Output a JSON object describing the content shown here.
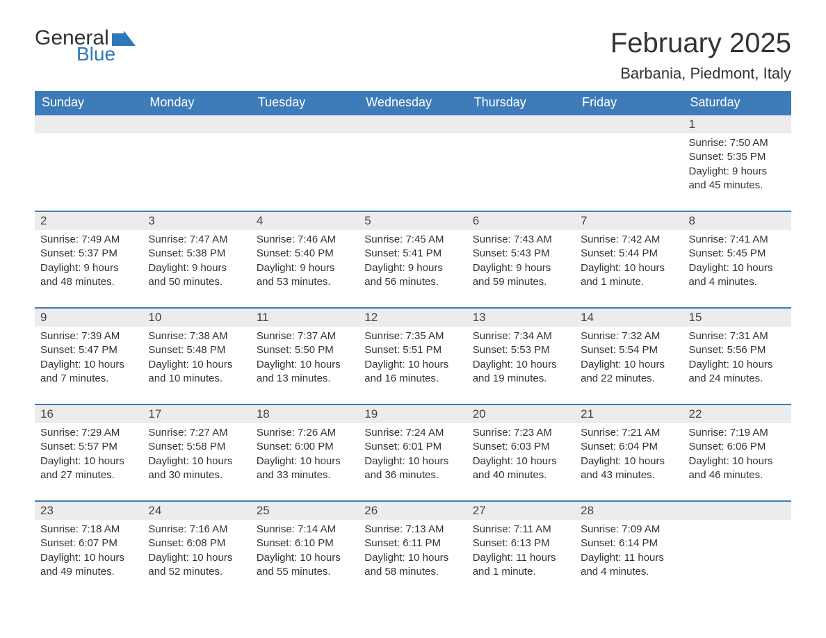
{
  "logo": {
    "general": "General",
    "blue": "Blue",
    "general_color": "#333333",
    "blue_color": "#2f77b7",
    "flag_color": "#2f77b7"
  },
  "title": "February 2025",
  "location": "Barbania, Piedmont, Italy",
  "colors": {
    "header_bg": "#3d7cb9",
    "header_text": "#ffffff",
    "daystrip_bg": "#ececec",
    "daystrip_border": "#3d7cb9",
    "body_bg": "#ffffff",
    "text": "#333333"
  },
  "weekdays": [
    "Sunday",
    "Monday",
    "Tuesday",
    "Wednesday",
    "Thursday",
    "Friday",
    "Saturday"
  ],
  "weeks": [
    [
      null,
      null,
      null,
      null,
      null,
      null,
      {
        "n": "1",
        "sunrise": "Sunrise: 7:50 AM",
        "sunset": "Sunset: 5:35 PM",
        "daylight": "Daylight: 9 hours and 45 minutes."
      }
    ],
    [
      {
        "n": "2",
        "sunrise": "Sunrise: 7:49 AM",
        "sunset": "Sunset: 5:37 PM",
        "daylight": "Daylight: 9 hours and 48 minutes."
      },
      {
        "n": "3",
        "sunrise": "Sunrise: 7:47 AM",
        "sunset": "Sunset: 5:38 PM",
        "daylight": "Daylight: 9 hours and 50 minutes."
      },
      {
        "n": "4",
        "sunrise": "Sunrise: 7:46 AM",
        "sunset": "Sunset: 5:40 PM",
        "daylight": "Daylight: 9 hours and 53 minutes."
      },
      {
        "n": "5",
        "sunrise": "Sunrise: 7:45 AM",
        "sunset": "Sunset: 5:41 PM",
        "daylight": "Daylight: 9 hours and 56 minutes."
      },
      {
        "n": "6",
        "sunrise": "Sunrise: 7:43 AM",
        "sunset": "Sunset: 5:43 PM",
        "daylight": "Daylight: 9 hours and 59 minutes."
      },
      {
        "n": "7",
        "sunrise": "Sunrise: 7:42 AM",
        "sunset": "Sunset: 5:44 PM",
        "daylight": "Daylight: 10 hours and 1 minute."
      },
      {
        "n": "8",
        "sunrise": "Sunrise: 7:41 AM",
        "sunset": "Sunset: 5:45 PM",
        "daylight": "Daylight: 10 hours and 4 minutes."
      }
    ],
    [
      {
        "n": "9",
        "sunrise": "Sunrise: 7:39 AM",
        "sunset": "Sunset: 5:47 PM",
        "daylight": "Daylight: 10 hours and 7 minutes."
      },
      {
        "n": "10",
        "sunrise": "Sunrise: 7:38 AM",
        "sunset": "Sunset: 5:48 PM",
        "daylight": "Daylight: 10 hours and 10 minutes."
      },
      {
        "n": "11",
        "sunrise": "Sunrise: 7:37 AM",
        "sunset": "Sunset: 5:50 PM",
        "daylight": "Daylight: 10 hours and 13 minutes."
      },
      {
        "n": "12",
        "sunrise": "Sunrise: 7:35 AM",
        "sunset": "Sunset: 5:51 PM",
        "daylight": "Daylight: 10 hours and 16 minutes."
      },
      {
        "n": "13",
        "sunrise": "Sunrise: 7:34 AM",
        "sunset": "Sunset: 5:53 PM",
        "daylight": "Daylight: 10 hours and 19 minutes."
      },
      {
        "n": "14",
        "sunrise": "Sunrise: 7:32 AM",
        "sunset": "Sunset: 5:54 PM",
        "daylight": "Daylight: 10 hours and 22 minutes."
      },
      {
        "n": "15",
        "sunrise": "Sunrise: 7:31 AM",
        "sunset": "Sunset: 5:56 PM",
        "daylight": "Daylight: 10 hours and 24 minutes."
      }
    ],
    [
      {
        "n": "16",
        "sunrise": "Sunrise: 7:29 AM",
        "sunset": "Sunset: 5:57 PM",
        "daylight": "Daylight: 10 hours and 27 minutes."
      },
      {
        "n": "17",
        "sunrise": "Sunrise: 7:27 AM",
        "sunset": "Sunset: 5:58 PM",
        "daylight": "Daylight: 10 hours and 30 minutes."
      },
      {
        "n": "18",
        "sunrise": "Sunrise: 7:26 AM",
        "sunset": "Sunset: 6:00 PM",
        "daylight": "Daylight: 10 hours and 33 minutes."
      },
      {
        "n": "19",
        "sunrise": "Sunrise: 7:24 AM",
        "sunset": "Sunset: 6:01 PM",
        "daylight": "Daylight: 10 hours and 36 minutes."
      },
      {
        "n": "20",
        "sunrise": "Sunrise: 7:23 AM",
        "sunset": "Sunset: 6:03 PM",
        "daylight": "Daylight: 10 hours and 40 minutes."
      },
      {
        "n": "21",
        "sunrise": "Sunrise: 7:21 AM",
        "sunset": "Sunset: 6:04 PM",
        "daylight": "Daylight: 10 hours and 43 minutes."
      },
      {
        "n": "22",
        "sunrise": "Sunrise: 7:19 AM",
        "sunset": "Sunset: 6:06 PM",
        "daylight": "Daylight: 10 hours and 46 minutes."
      }
    ],
    [
      {
        "n": "23",
        "sunrise": "Sunrise: 7:18 AM",
        "sunset": "Sunset: 6:07 PM",
        "daylight": "Daylight: 10 hours and 49 minutes."
      },
      {
        "n": "24",
        "sunrise": "Sunrise: 7:16 AM",
        "sunset": "Sunset: 6:08 PM",
        "daylight": "Daylight: 10 hours and 52 minutes."
      },
      {
        "n": "25",
        "sunrise": "Sunrise: 7:14 AM",
        "sunset": "Sunset: 6:10 PM",
        "daylight": "Daylight: 10 hours and 55 minutes."
      },
      {
        "n": "26",
        "sunrise": "Sunrise: 7:13 AM",
        "sunset": "Sunset: 6:11 PM",
        "daylight": "Daylight: 10 hours and 58 minutes."
      },
      {
        "n": "27",
        "sunrise": "Sunrise: 7:11 AM",
        "sunset": "Sunset: 6:13 PM",
        "daylight": "Daylight: 11 hours and 1 minute."
      },
      {
        "n": "28",
        "sunrise": "Sunrise: 7:09 AM",
        "sunset": "Sunset: 6:14 PM",
        "daylight": "Daylight: 11 hours and 4 minutes."
      },
      null
    ]
  ]
}
